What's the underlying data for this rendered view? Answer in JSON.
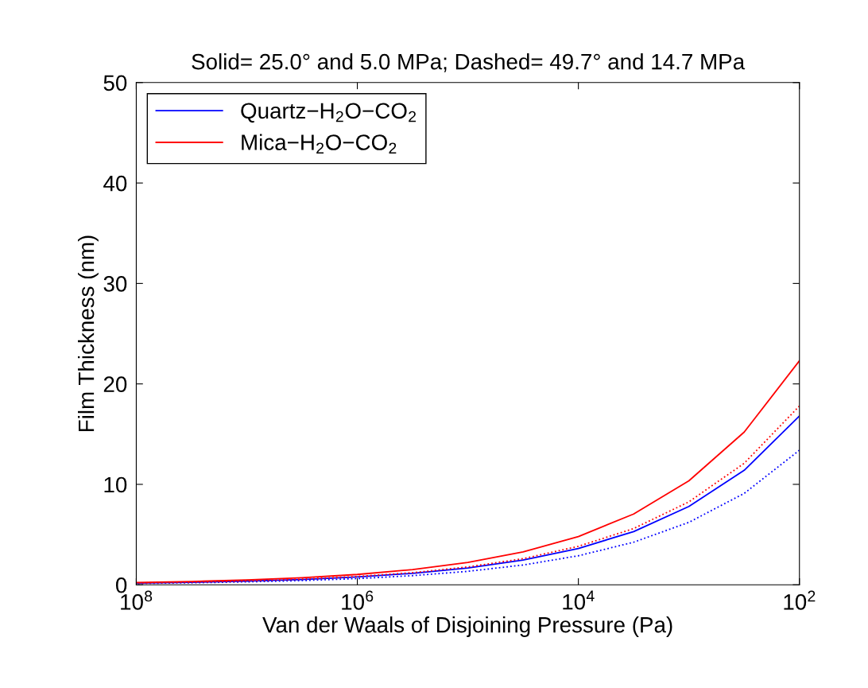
{
  "chart_data": {
    "type": "line",
    "title": "Solid= 25.0° and 5.0 MPa; Dashed= 49.7° and 14.7 MPa",
    "xlabel": "Van der Waals of Disjoining Pressure (Pa)",
    "ylabel": "Film Thickness (nm)",
    "x": [
      100,
      316,
      1000,
      3162,
      10000,
      31623,
      100000,
      316228,
      1000000,
      3162278,
      10000000,
      31622777,
      100000000
    ],
    "series": [
      {
        "name": "Quartz−H$_{2}$O−CO$_{2}$",
        "color": "#0000ff",
        "line_style": "solid",
        "values": [
          16.8,
          11.4,
          7.8,
          5.3,
          3.62,
          2.47,
          1.68,
          1.14,
          0.78,
          0.53,
          0.36,
          0.25,
          0.17
        ]
      },
      {
        "name": "Mica−H$_{2}$O−CO$_{2}$",
        "color": "#ff0000",
        "line_style": "solid",
        "values": [
          22.3,
          15.2,
          10.35,
          7.05,
          4.8,
          3.27,
          2.23,
          1.52,
          1.03,
          0.7,
          0.48,
          0.33,
          0.22
        ]
      },
      {
        "color": "#0000ff",
        "line_style": "dotted",
        "values": [
          13.4,
          9.1,
          6.22,
          4.24,
          2.89,
          1.97,
          1.34,
          0.91,
          0.62,
          0.42,
          0.29,
          0.2,
          0.13
        ]
      },
      {
        "color": "#ff0000",
        "line_style": "dotted",
        "values": [
          17.8,
          12.1,
          8.26,
          5.6,
          3.83,
          2.6,
          1.78,
          1.21,
          0.83,
          0.56,
          0.38,
          0.26,
          0.18
        ]
      }
    ],
    "log": "x",
    "xlim": [
      100000000,
      100
    ],
    "xticks": [
      {
        "value": 100000000,
        "label": "10$^{8}$"
      },
      {
        "value": 1000000,
        "label": "10$^{6}$"
      },
      {
        "value": 10000,
        "label": "10$^{4}$"
      },
      {
        "value": 100,
        "label": "10$^{2}$"
      }
    ],
    "ylim": [
      0,
      50
    ],
    "yticks": [
      0,
      10,
      20,
      30,
      40,
      50
    ],
    "grid": false,
    "legend": "top left",
    "marker": "none"
  }
}
